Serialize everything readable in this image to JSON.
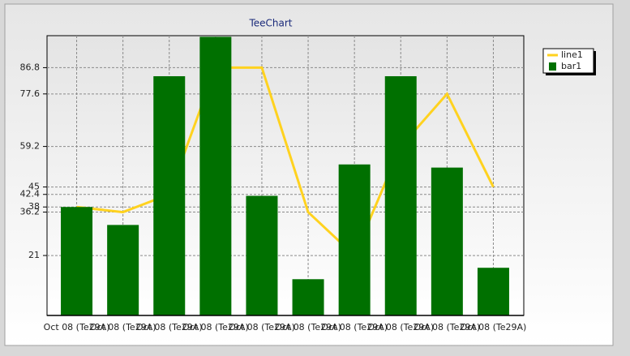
{
  "chart_data": {
    "type": "bar-line",
    "title": "TeeChart",
    "categories": [
      "Oct 08 (Te29A)",
      "Oct 08 (Te29A)",
      "Oct 08 (Te29A)",
      "Oct 08 (Te29A)",
      "Oct 08 (Te29A)",
      "Oct 08 (Te29A)",
      "Oct 08 (Te29A)",
      "Oct 08 (Te29A)",
      "Oct 08 (Te29A)",
      "Oct 08 (Te29A)"
    ],
    "series": [
      {
        "name": "line1",
        "kind": "line",
        "color": "#ffd21f",
        "values": [
          38,
          36.2,
          42.4,
          86.8,
          86.8,
          36.2,
          21,
          59.2,
          77.6,
          45
        ]
      },
      {
        "name": "bar1",
        "kind": "bar",
        "color": "#007000",
        "values": [
          38,
          31.7,
          83.8,
          97.6,
          41.9,
          12.7,
          52.9,
          83.8,
          51.8,
          16.7
        ]
      }
    ],
    "ylim": [
      0,
      98
    ],
    "yticks": [
      21,
      36.2,
      38,
      42.4,
      45,
      59.2,
      77.6,
      86.8
    ],
    "grid": true,
    "legend": "top-right"
  }
}
